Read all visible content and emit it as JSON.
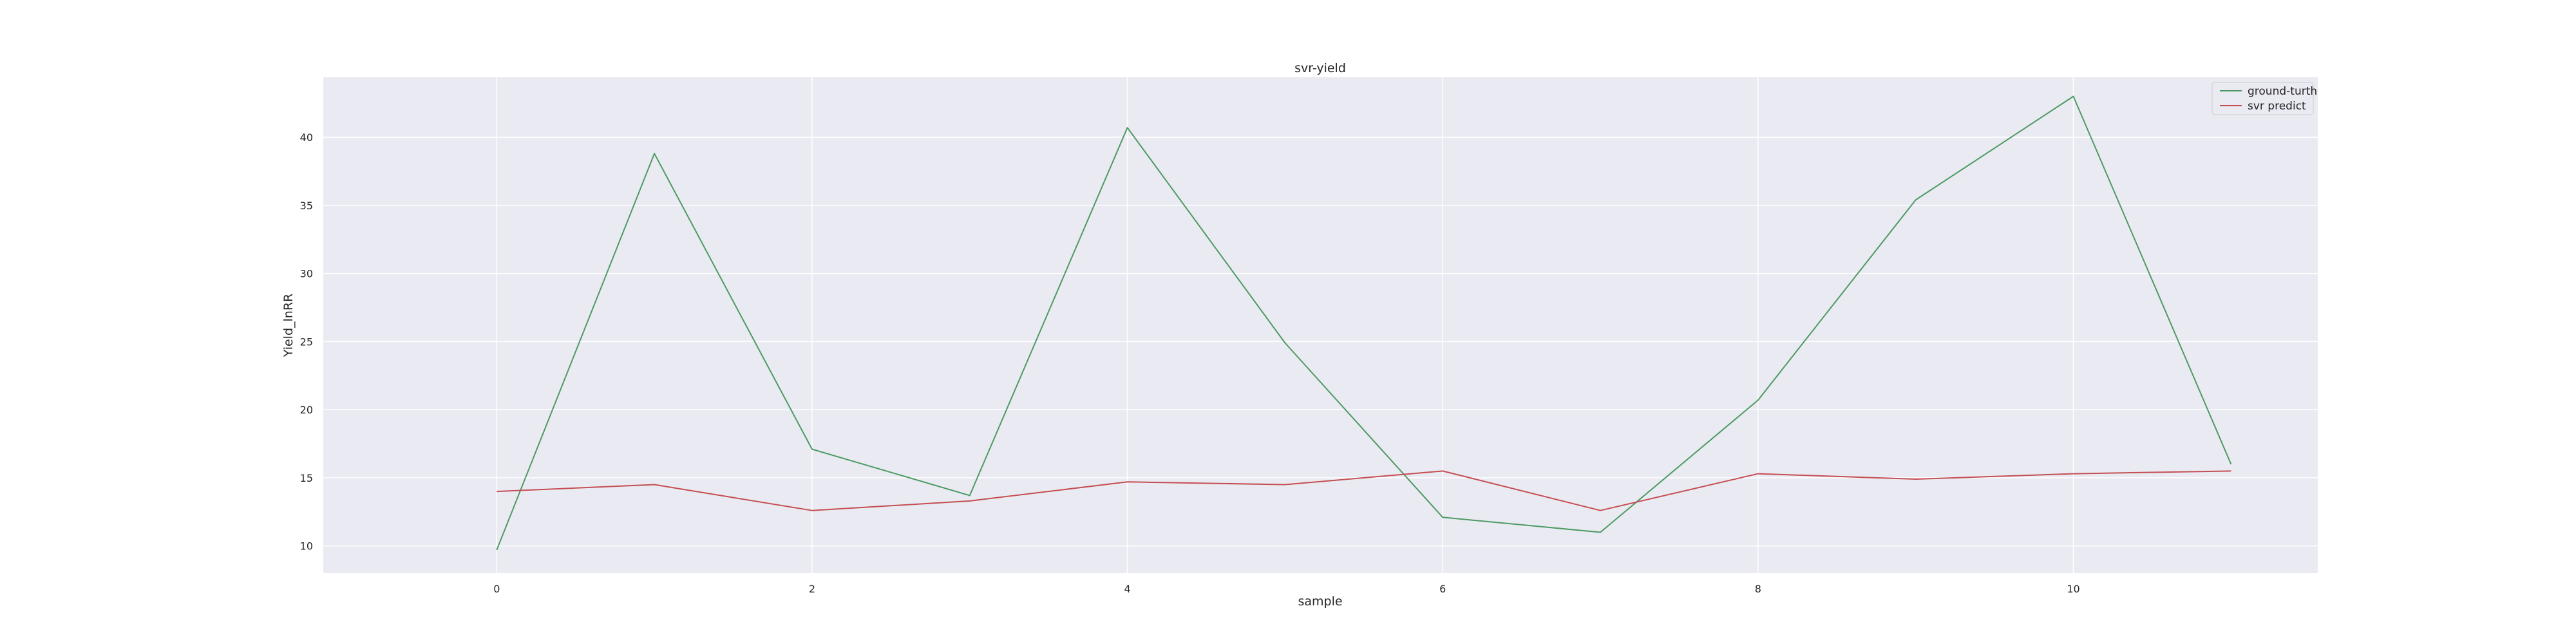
{
  "chart_data": {
    "type": "line",
    "title": "svr-yield",
    "xlabel": "sample",
    "ylabel": "Yield_lnRR",
    "x": [
      0,
      1,
      2,
      3,
      4,
      5,
      6,
      7,
      8,
      9,
      10,
      11
    ],
    "xlim": [
      -1.1,
      11.55
    ],
    "ylim": [
      8.0,
      44.4
    ],
    "xticks": [
      0,
      2,
      4,
      6,
      8,
      10
    ],
    "yticks": [
      10,
      15,
      20,
      25,
      30,
      35,
      40
    ],
    "grid": true,
    "legend_position": "top-right",
    "series": [
      {
        "name": "ground-turth",
        "color": "#4c9a62",
        "values": [
          9.7,
          38.8,
          17.1,
          13.7,
          40.7,
          24.9,
          12.1,
          11.0,
          20.7,
          35.4,
          43.0,
          16.0
        ]
      },
      {
        "name": "svr predict",
        "color": "#c44e52",
        "values": [
          14.0,
          14.5,
          12.6,
          13.3,
          14.7,
          14.5,
          15.5,
          12.6,
          15.3,
          14.9,
          15.3,
          15.5
        ]
      }
    ]
  },
  "colors": {
    "plot_background": "#eaeaf2",
    "grid": "#ffffff",
    "text": "#262626"
  }
}
